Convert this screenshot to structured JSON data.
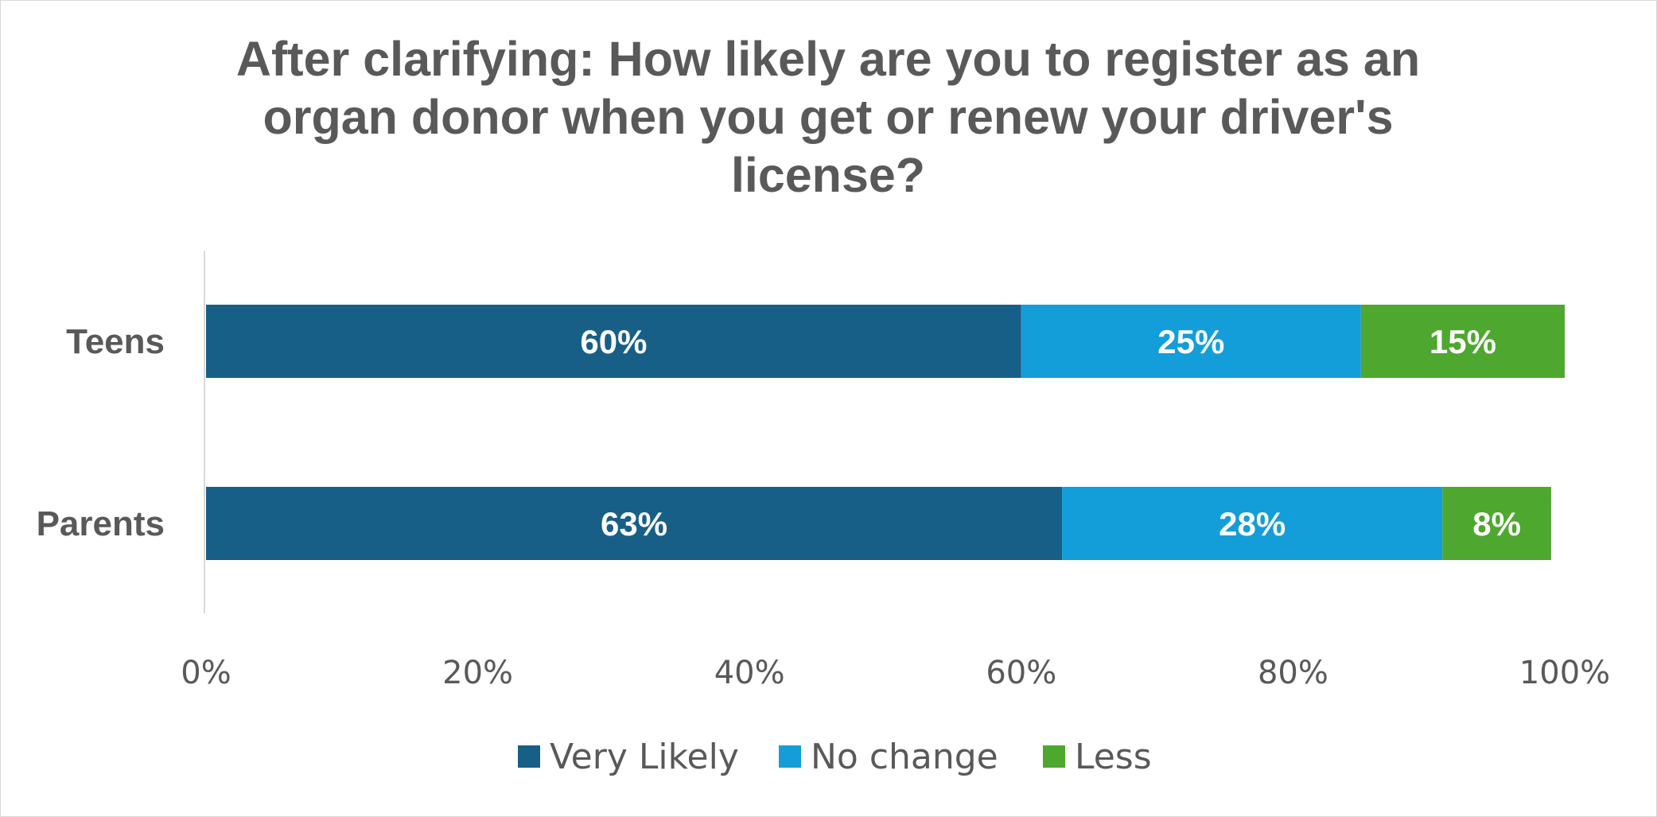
{
  "colors": {
    "very_likely": "#175F86",
    "no_change": "#139ED9",
    "less": "#4EA72E",
    "text": "#595959",
    "axis_line": "#d9d9d9",
    "data_label": "#ffffff"
  },
  "chart_data": {
    "type": "bar",
    "orientation": "horizontal",
    "stacked": true,
    "title_lines": [
      "After clarifying: How likely are you to register as an",
      "organ donor when you get or renew your driver's",
      "license?"
    ],
    "categories": [
      "Teens",
      "Parents"
    ],
    "series": [
      {
        "name": "Very Likely",
        "values": [
          60,
          63
        ],
        "labels": [
          "60%",
          "63%"
        ],
        "color": "#175F86"
      },
      {
        "name": "No change",
        "values": [
          25,
          28
        ],
        "labels": [
          "25%",
          "28%"
        ],
        "color": "#139ED9"
      },
      {
        "name": "Less",
        "values": [
          15,
          8
        ],
        "labels": [
          "15%",
          "8%"
        ],
        "color": "#4EA72E"
      }
    ],
    "xlim": [
      0,
      100
    ],
    "x_ticks": [
      0,
      20,
      40,
      60,
      80,
      100
    ],
    "x_tick_labels": [
      "0%",
      "20%",
      "40%",
      "60%",
      "80%",
      "100%"
    ],
    "grid": false,
    "legend_position": "bottom"
  }
}
